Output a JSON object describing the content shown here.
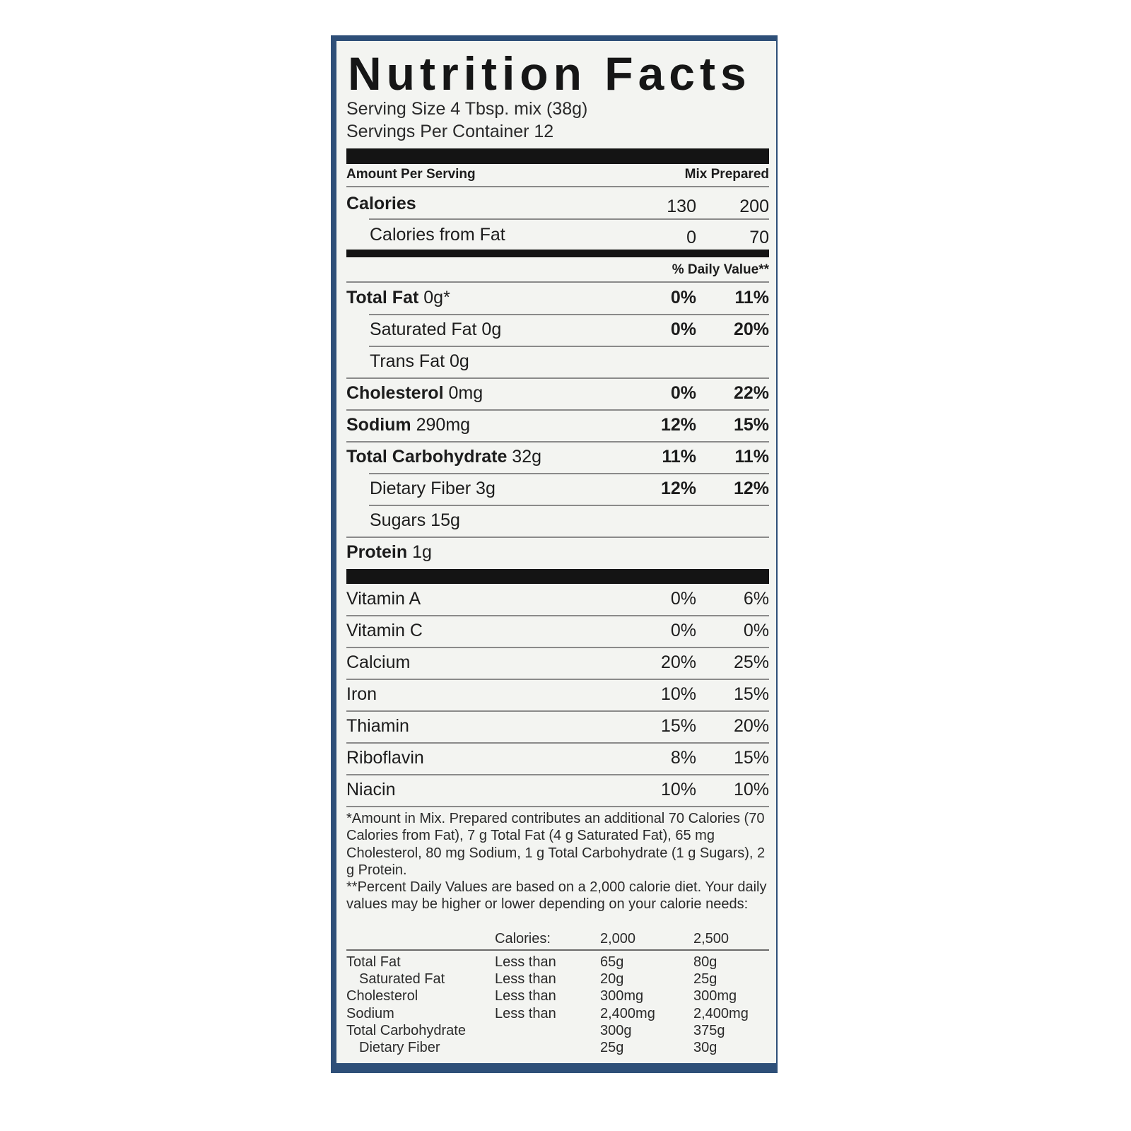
{
  "label": {
    "title": "Nutrition Facts",
    "serving_size": "Serving Size 4 Tbsp. mix (38g)",
    "servings_per_container": "Servings Per Container 12",
    "amount_per_serving": "Amount Per Serving",
    "col_headers": "Mix Prepared",
    "calories": {
      "label": "Calories",
      "mix": "130",
      "prepared": "200"
    },
    "calories_from_fat": {
      "label": "Calories from Fat",
      "mix": "0",
      "prepared": "70"
    },
    "daily_value_header": "% Daily Value**",
    "nutrients": [
      {
        "name": "Total Fat",
        "amount": " 0g*",
        "mix": "0%",
        "prepared": "11%",
        "indent": false
      },
      {
        "name": "Saturated Fat",
        "amount": " 0g",
        "mix": "0%",
        "prepared": "20%",
        "indent": true
      },
      {
        "name": "Trans Fat",
        "amount": " 0g",
        "mix": "",
        "prepared": "",
        "indent": true
      },
      {
        "name": "Cholesterol",
        "amount": " 0mg",
        "mix": "0%",
        "prepared": "22%",
        "indent": false
      },
      {
        "name": "Sodium",
        "amount": " 290mg",
        "mix": "12%",
        "prepared": "15%",
        "indent": false
      },
      {
        "name": "Total Carbohydrate",
        "amount": " 32g",
        "mix": "11%",
        "prepared": "11%",
        "indent": false
      },
      {
        "name": "Dietary Fiber",
        "amount": " 3g",
        "mix": "12%",
        "prepared": "12%",
        "indent": true
      },
      {
        "name": "Sugars",
        "amount": " 15g",
        "mix": "",
        "prepared": "",
        "indent": true
      },
      {
        "name": "Protein",
        "amount": " 1g",
        "mix": "",
        "prepared": "",
        "indent": false
      }
    ],
    "vitamins": [
      {
        "name": "Vitamin A",
        "mix": "0%",
        "prepared": "6%"
      },
      {
        "name": "Vitamin C",
        "mix": "0%",
        "prepared": "0%"
      },
      {
        "name": "Calcium",
        "mix": "20%",
        "prepared": "25%"
      },
      {
        "name": "Iron",
        "mix": "10%",
        "prepared": "15%"
      },
      {
        "name": "Thiamin",
        "mix": "15%",
        "prepared": "20%"
      },
      {
        "name": "Riboflavin",
        "mix": "8%",
        "prepared": "15%"
      },
      {
        "name": "Niacin",
        "mix": "10%",
        "prepared": "10%"
      }
    ],
    "footnote_1": "*Amount in Mix. Prepared contributes an additional 70 Calories (70 Calories from Fat), 7 g Total Fat (4 g Saturated Fat), 65 mg Cholesterol, 80 mg Sodium, 1 g Total Carbohydrate (1 g Sugars), 2 g Protein.",
    "footnote_2": "**Percent Daily Values are based on a 2,000 calorie diet. Your daily values may be higher or lower depending on your calorie needs:",
    "dv_table": {
      "header": [
        "",
        "Calories:",
        "2,000",
        "2,500"
      ],
      "rows": [
        [
          "Total Fat",
          "Less than",
          "65g",
          "80g",
          false
        ],
        [
          "Saturated Fat",
          "Less than",
          "20g",
          "25g",
          true
        ],
        [
          "Cholesterol",
          "Less than",
          "300mg",
          "300mg",
          false
        ],
        [
          "Sodium",
          "Less than",
          "2,400mg",
          "2,400mg",
          false
        ],
        [
          "Total Carbohydrate",
          "",
          "300g",
          "375g",
          false
        ],
        [
          "Dietary Fiber",
          "",
          "25g",
          "30g",
          true
        ]
      ]
    }
  },
  "colors": {
    "frame": "#2e4f78",
    "panel": "#f3f4f1",
    "ink": "#141414"
  }
}
